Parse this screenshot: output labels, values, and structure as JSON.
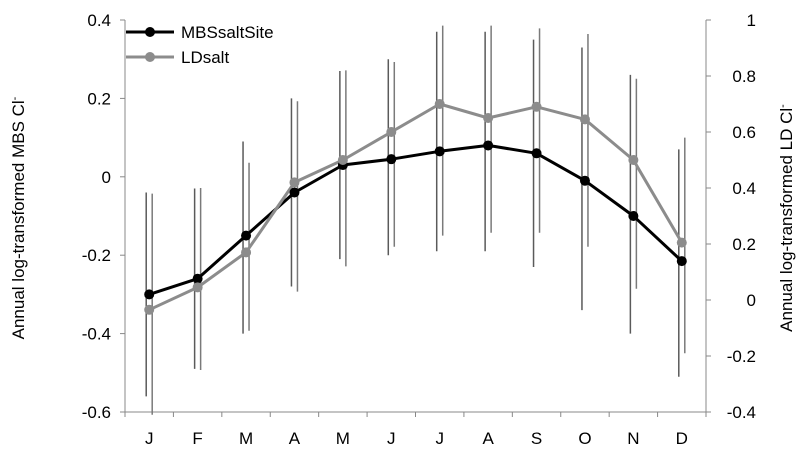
{
  "chart_data": {
    "type": "line",
    "categories": [
      "J",
      "F",
      "M",
      "A",
      "M",
      "J",
      "J",
      "A",
      "S",
      "O",
      "N",
      "D"
    ],
    "ylabel_left_main": "Annual log-transformed MBS Cl",
    "ylabel_left_sup": "-",
    "ylabel_right_main": "Annual log-transformed LD Cl",
    "ylabel_right_sup": "-",
    "y_left": {
      "min": -0.6,
      "max": 0.4,
      "ticks": [
        "-0.6",
        "-0.4",
        "-0.2",
        "0",
        "0.2",
        "0.4"
      ]
    },
    "y_right": {
      "min": -0.4,
      "max": 1,
      "ticks": [
        "-0.4",
        "-0.2",
        "0",
        "0.2",
        "0.4",
        "0.6",
        "0.8",
        "1"
      ]
    },
    "legend_position": "top-left",
    "series": [
      {
        "name": "MBSsaltSite",
        "axis": "left",
        "color": "#000000",
        "values": [
          -0.3,
          -0.26,
          -0.15,
          -0.04,
          0.03,
          0.045,
          0.065,
          0.08,
          0.06,
          -0.01,
          -0.1,
          -0.215
        ],
        "err_low": [
          -0.56,
          -0.49,
          -0.4,
          -0.28,
          -0.21,
          -0.2,
          -0.19,
          -0.19,
          -0.23,
          -0.34,
          -0.4,
          -0.51
        ],
        "err_high": [
          -0.04,
          -0.03,
          0.09,
          0.2,
          0.27,
          0.3,
          0.37,
          0.37,
          0.35,
          0.33,
          0.26,
          0.07
        ]
      },
      {
        "name": "LDsalt",
        "axis": "right",
        "color": "#8c8c8c",
        "values": [
          -0.035,
          0.045,
          0.17,
          0.42,
          0.5,
          0.6,
          0.7,
          0.65,
          0.69,
          0.645,
          0.5,
          0.205
        ],
        "err_low": [
          -0.41,
          -0.25,
          -0.11,
          0.03,
          0.12,
          0.19,
          0.23,
          0.24,
          0.24,
          0.19,
          0.04,
          -0.19
        ],
        "err_high": [
          0.38,
          0.4,
          0.49,
          0.71,
          0.82,
          0.85,
          0.98,
          0.98,
          0.97,
          0.95,
          0.79,
          0.58
        ]
      }
    ]
  }
}
